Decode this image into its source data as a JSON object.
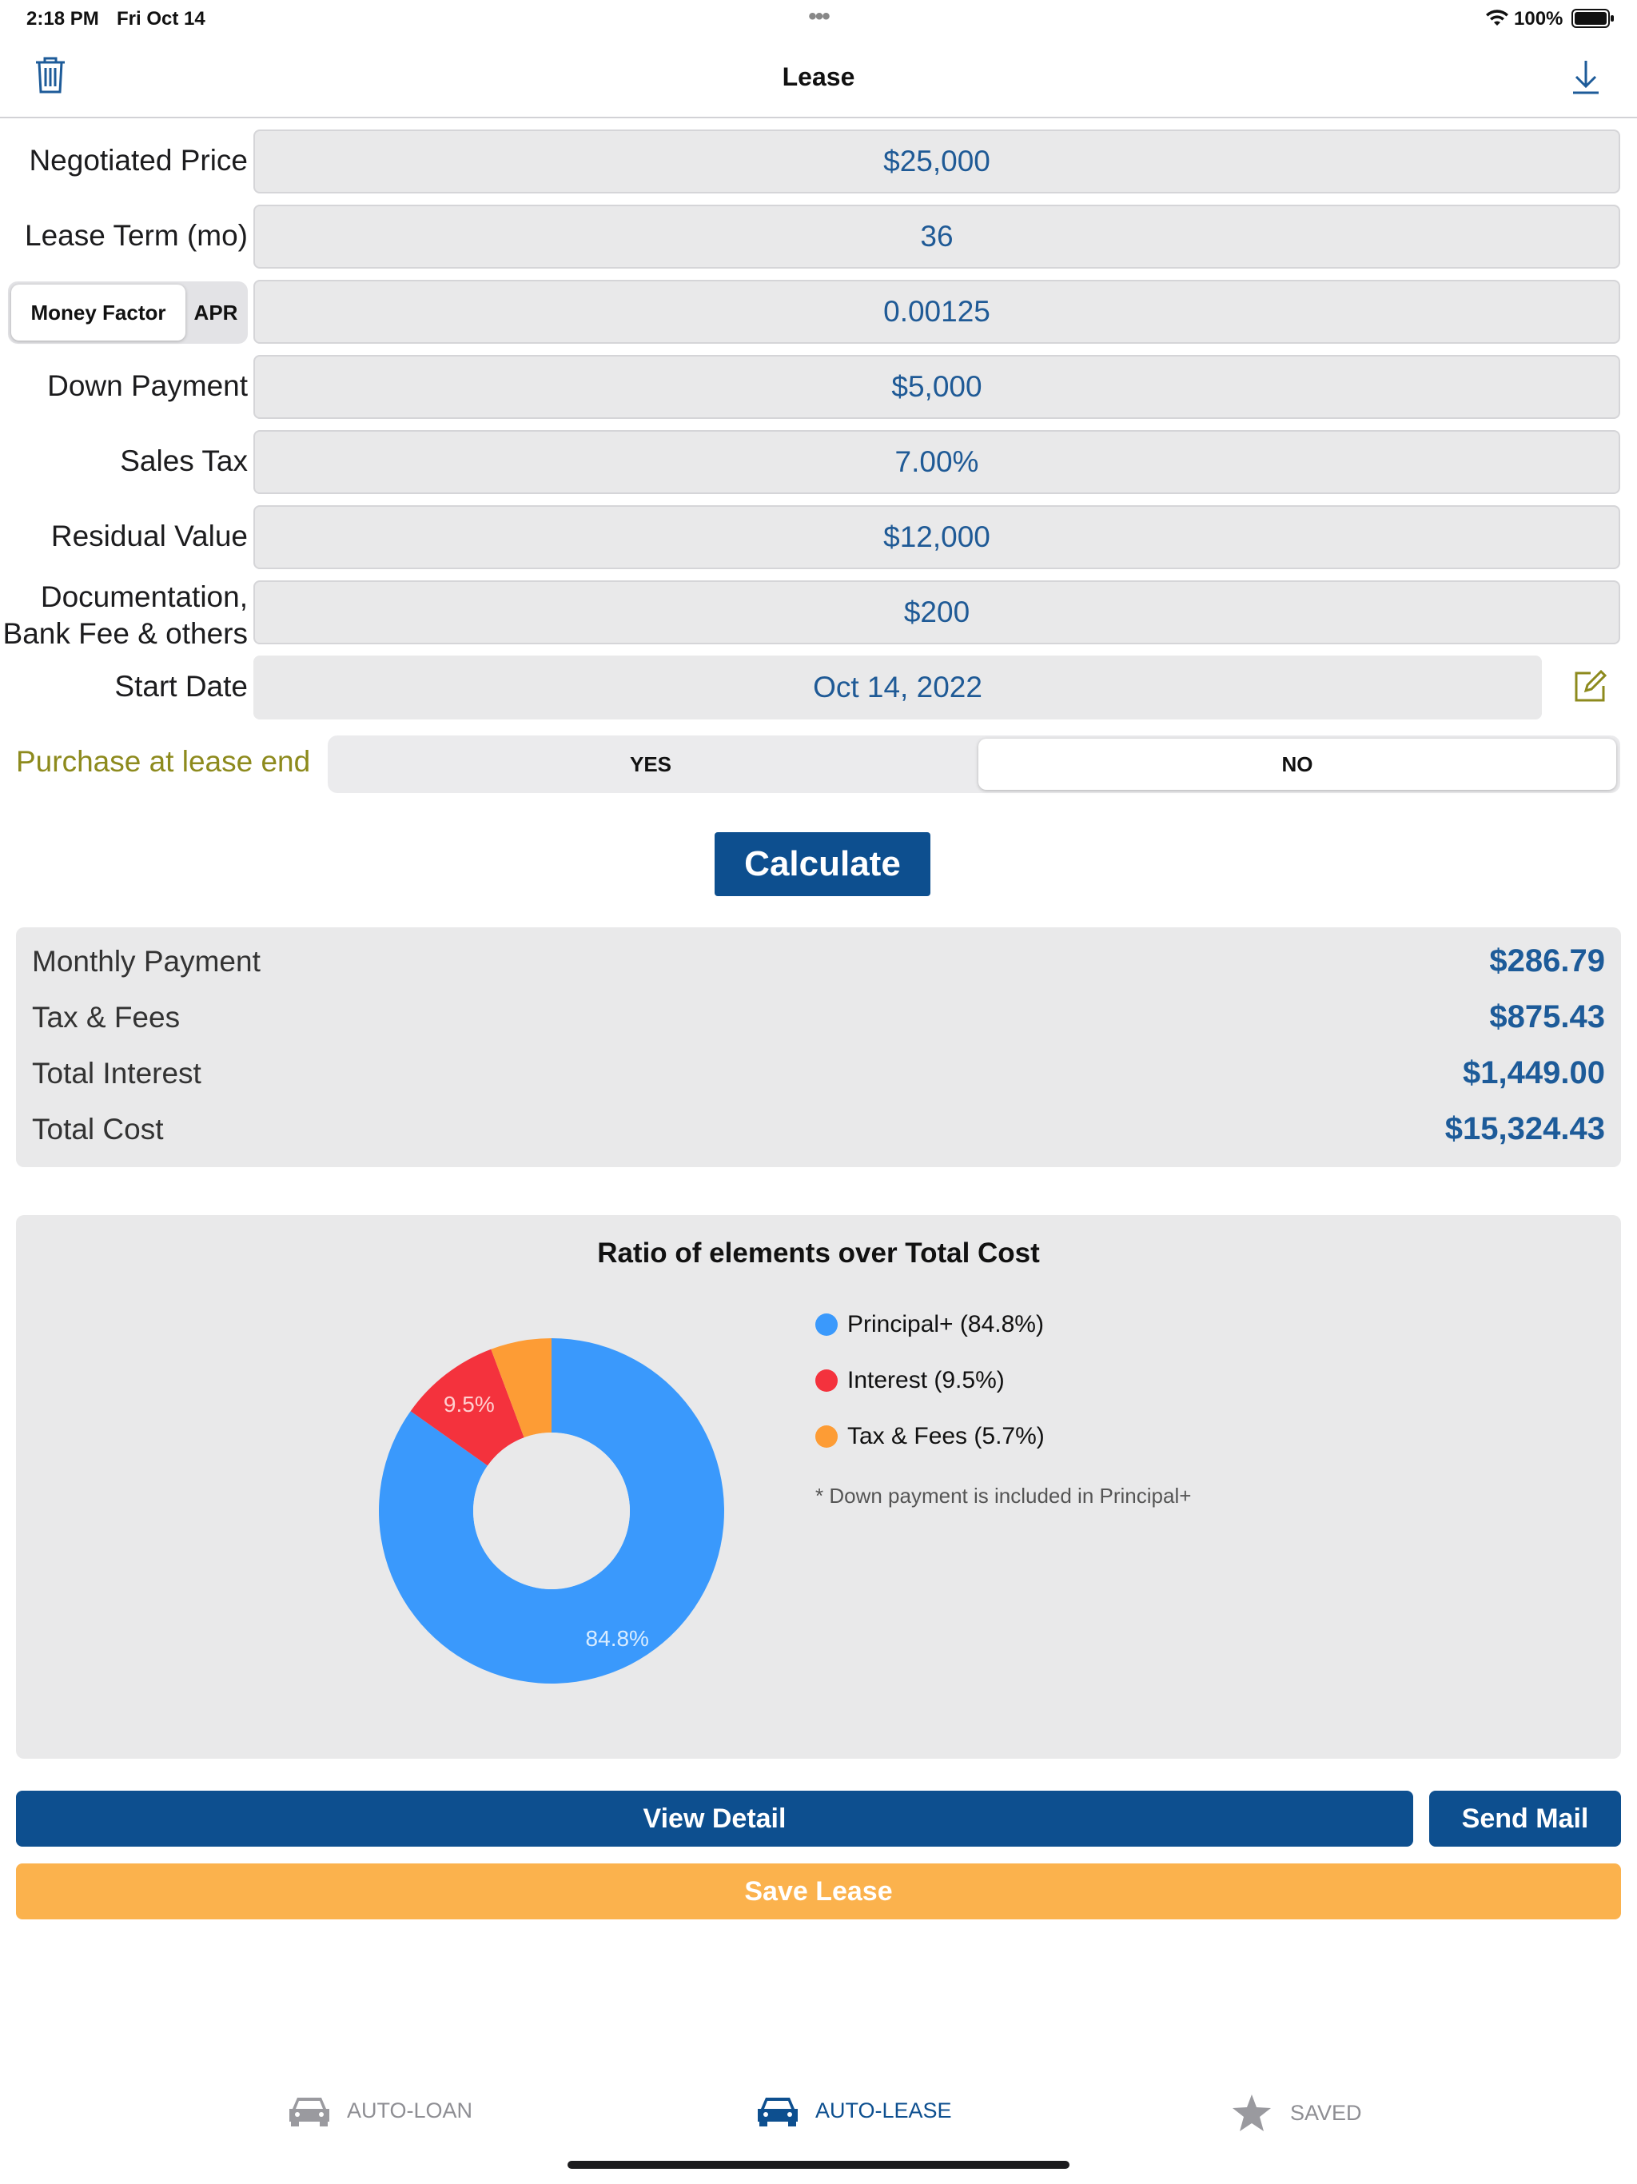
{
  "status_bar": {
    "time": "2:18 PM",
    "date": "Fri Oct 14",
    "more": "•••",
    "battery": "100%"
  },
  "nav": {
    "title": "Lease",
    "left_icon": "trash-icon",
    "right_icon": "download-icon"
  },
  "form": {
    "negotiated_price": {
      "label": "Negotiated Price",
      "value": "$25,000"
    },
    "lease_term": {
      "label": "Lease Term (mo)",
      "value": "36"
    },
    "rate_toggle": {
      "option_a": "Money Factor",
      "option_b": "APR",
      "selected": "Money Factor"
    },
    "rate": {
      "value": "0.00125"
    },
    "down_payment": {
      "label": "Down Payment",
      "value": "$5,000"
    },
    "sales_tax": {
      "label": "Sales Tax",
      "value": "7.00%"
    },
    "residual_value": {
      "label": "Residual Value",
      "value": "$12,000"
    },
    "doc_fee": {
      "label_line1": "Documentation,",
      "label_line2": "Bank Fee & others",
      "value": "$200"
    },
    "start_date": {
      "label": "Start Date",
      "value": "Oct 14, 2022",
      "edit_icon": "edit-icon"
    },
    "purchase": {
      "label": "Purchase at lease end",
      "yes": "YES",
      "no": "NO",
      "selected": "NO"
    }
  },
  "calculate_label": "Calculate",
  "results": [
    {
      "label": "Monthly Payment",
      "value": "$286.79"
    },
    {
      "label": "Tax & Fees",
      "value": "$875.43"
    },
    {
      "label": "Total Interest",
      "value": "$1,449.00"
    },
    {
      "label": "Total Cost",
      "value": "$15,324.43"
    }
  ],
  "chart_data": {
    "type": "pie",
    "title": "Ratio of elements over Total Cost",
    "categories": [
      "Principal+",
      "Interest",
      "Tax & Fees"
    ],
    "values": [
      84.8,
      9.5,
      5.7
    ],
    "slice_labels": [
      "84.8%",
      "9.5%",
      ""
    ],
    "legend": [
      "Principal+ (84.8%)",
      "Interest (9.5%)",
      "Tax & Fees (5.7%)"
    ],
    "colors": [
      "#3a99fc",
      "#f4323d",
      "#fd9c35"
    ],
    "donut": true,
    "legend_placement": "right",
    "note": "* Down payment is included in Principal+"
  },
  "actions": {
    "view_detail": "View Detail",
    "send_mail": "Send Mail",
    "save_lease": "Save Lease"
  },
  "tabs": [
    {
      "label": "AUTO-LOAN",
      "icon": "car-icon",
      "active": false
    },
    {
      "label": "AUTO-LEASE",
      "icon": "car-icon",
      "active": true
    },
    {
      "label": "SAVED",
      "icon": "star-icon",
      "active": false
    }
  ],
  "colors": {
    "accent": "#0d4f8f",
    "field_text": "#1f5a96",
    "save": "#fbb24d",
    "olive": "#8d8a1d"
  }
}
